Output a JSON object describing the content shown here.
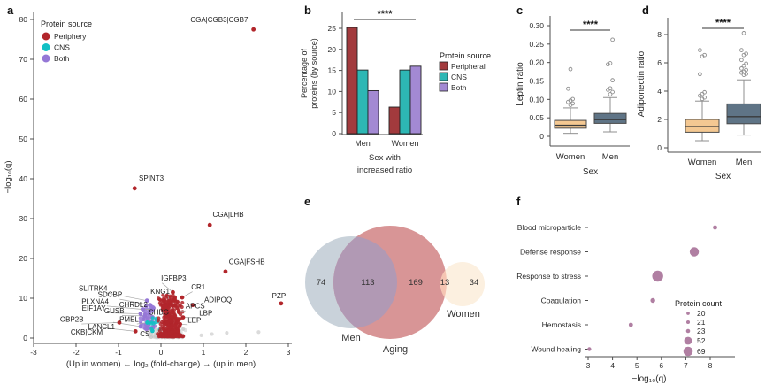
{
  "panels": {
    "a": "a",
    "b": "b",
    "c": "c",
    "d": "d",
    "e": "e",
    "f": "f"
  },
  "chart_data": [
    {
      "panel": "a",
      "type": "scatter",
      "xlabel": "(Up in women) ← log₂ (fold-change) → (up in men)",
      "ylabel": "−log₁₀(q)",
      "xlim": [
        -3,
        3
      ],
      "ylim": [
        0,
        82
      ],
      "xticks": [
        -3,
        -2,
        -1,
        0,
        1,
        2,
        3
      ],
      "yticks": [
        0,
        10,
        20,
        30,
        40,
        50,
        60,
        70,
        80
      ],
      "legend": {
        "title": "Protein source",
        "items": [
          {
            "label": "Periphery",
            "key": "periphery"
          },
          {
            "label": "CNS",
            "key": "cns"
          },
          {
            "label": "Both",
            "key": "both"
          }
        ]
      },
      "point_colors": {
        "periphery": "#b2262b",
        "cns": "#12c0c4",
        "both": "#9577d6",
        "ns": "#c3c3c3"
      },
      "labeled_points": [
        {
          "name": "CGA|CGB3|CGB7",
          "x": 2.18,
          "y": 77.5,
          "c": "periphery",
          "lx": 2.05,
          "ly": 79.3,
          "a": "end",
          "leader": false
        },
        {
          "name": "SPINT3",
          "x": -0.62,
          "y": 37.6,
          "c": "periphery",
          "lx": -0.52,
          "ly": 39.6,
          "a": "start",
          "leader": false
        },
        {
          "name": "CGA|LHB",
          "x": 1.15,
          "y": 28.4,
          "c": "periphery",
          "lx": 1.22,
          "ly": 30.4,
          "a": "start",
          "leader": false
        },
        {
          "name": "CGA|FSHB",
          "x": 1.52,
          "y": 16.7,
          "c": "periphery",
          "lx": 1.6,
          "ly": 18.6,
          "a": "start",
          "leader": false
        },
        {
          "name": "IGFBP3",
          "x": 0.28,
          "y": 11.5,
          "c": "periphery",
          "lx": 0.3,
          "ly": 14.4,
          "a": "middle",
          "leader": true
        },
        {
          "name": "CR1",
          "x": 0.5,
          "y": 10.2,
          "c": "periphery",
          "lx": 0.88,
          "ly": 12.2,
          "a": "middle",
          "leader": true
        },
        {
          "name": "KNG1",
          "x": 0.2,
          "y": 9.3,
          "c": "periphery",
          "lx": -0.02,
          "ly": 11.1,
          "a": "middle",
          "leader": true
        },
        {
          "name": "SLITRK4",
          "x": -0.33,
          "y": 9.4,
          "c": "both",
          "lx": -1.6,
          "ly": 11.9,
          "a": "middle",
          "leader": true
        },
        {
          "name": "SDCBP",
          "x": -0.25,
          "y": 8.3,
          "c": "both",
          "lx": -1.2,
          "ly": 10.3,
          "a": "middle",
          "leader": true
        },
        {
          "name": "ADIPOQ",
          "x": 0.75,
          "y": 8.3,
          "c": "periphery",
          "lx": 1.02,
          "ly": 9.0,
          "a": "start",
          "leader": false
        },
        {
          "name": "PZP",
          "x": 2.83,
          "y": 8.7,
          "c": "periphery",
          "lx": 2.78,
          "ly": 10.0,
          "a": "middle",
          "leader": false
        },
        {
          "name": "PLXNA4",
          "x": -0.42,
          "y": 7.2,
          "c": "both",
          "lx": -1.55,
          "ly": 8.6,
          "a": "middle",
          "leader": true
        },
        {
          "name": "CHRDL2",
          "x": -0.2,
          "y": 7.2,
          "c": "both",
          "lx": -0.65,
          "ly": 7.8,
          "a": "middle",
          "leader": true
        },
        {
          "name": "APCS",
          "x": 0.42,
          "y": 6.6,
          "c": "periphery",
          "lx": 0.58,
          "ly": 7.4,
          "a": "start",
          "leader": true
        },
        {
          "name": "EIF1AY",
          "x": -0.48,
          "y": 6.1,
          "c": "both",
          "lx": -1.58,
          "ly": 6.9,
          "a": "middle",
          "leader": true
        },
        {
          "name": "GUSB",
          "x": -0.38,
          "y": 5.6,
          "c": "both",
          "lx": -1.1,
          "ly": 6.2,
          "a": "middle",
          "leader": true
        },
        {
          "name": "SHBG",
          "x": 0.1,
          "y": 5.5,
          "c": "periphery",
          "lx": -0.05,
          "ly": 5.9,
          "a": "middle",
          "leader": false
        },
        {
          "name": "LBP",
          "x": 0.52,
          "y": 5.2,
          "c": "periphery",
          "lx": 0.9,
          "ly": 5.7,
          "a": "start",
          "leader": true
        },
        {
          "name": "OBP2B",
          "x": -0.98,
          "y": 3.9,
          "c": "periphery",
          "lx": -2.1,
          "ly": 4.1,
          "a": "middle",
          "leader": true
        },
        {
          "name": "PMEL",
          "x": -0.32,
          "y": 3.9,
          "c": "cns",
          "lx": -0.75,
          "ly": 4.1,
          "a": "middle",
          "leader": true
        },
        {
          "name": "LEP",
          "x": 0.45,
          "y": 3.5,
          "c": "periphery",
          "lx": 0.63,
          "ly": 3.9,
          "a": "start",
          "leader": true
        },
        {
          "name": "LANCL1",
          "x": -0.48,
          "y": 2.9,
          "c": "both",
          "lx": -1.4,
          "ly": 2.2,
          "a": "middle",
          "leader": true
        },
        {
          "name": "CKB|CKM",
          "x": -0.6,
          "y": 1.7,
          "c": "periphery",
          "lx": -1.75,
          "ly": 0.9,
          "a": "middle",
          "leader": true
        },
        {
          "name": "CS",
          "x": -0.2,
          "y": 1.8,
          "c": "cns",
          "lx": -0.38,
          "ly": 0.4,
          "a": "middle",
          "leader": true
        }
      ],
      "background_cloud": {
        "seed": 12,
        "point_radius": 2.1,
        "groups": [
          {
            "key": "ns",
            "n": 150,
            "cx": 0.15,
            "sx": 0.34,
            "ymin": 0.15,
            "ymax": 2.3,
            "ypow": 1.6
          },
          {
            "key": "both",
            "n": 60,
            "cx": -0.3,
            "sx": 0.14,
            "ymin": 2.2,
            "ymax": 8.6,
            "ypow": 1.6
          },
          {
            "key": "cns",
            "n": 10,
            "cx": -0.18,
            "sx": 0.15,
            "ymin": 2.0,
            "ymax": 6.0,
            "ypow": 1.2
          },
          {
            "key": "periphery",
            "n": 400,
            "cx": 0.22,
            "sx": 0.2,
            "ymin": 0.4,
            "ymax": 10.8,
            "ypow": 2.4
          }
        ]
      },
      "extra_ns_points": [
        {
          "x": 1.55,
          "y": 1.3
        },
        {
          "x": 2.3,
          "y": 1.5
        },
        {
          "x": 0.95,
          "y": 0.7
        },
        {
          "x": 1.2,
          "y": 1.0
        }
      ]
    },
    {
      "panel": "b",
      "type": "bar",
      "categories": [
        "Men",
        "Women"
      ],
      "series": [
        {
          "name": "Peripheral",
          "color": "#a23a3d",
          "values": [
            25.2,
            6.3
          ]
        },
        {
          "name": "CNS",
          "color": "#2db7b4",
          "values": [
            15.1,
            15.1
          ]
        },
        {
          "name": "Both",
          "color": "#a389d3",
          "values": [
            10.2,
            16.0
          ]
        }
      ],
      "ylabel_lines": [
        "Percentage of",
        "proteins (by source)"
      ],
      "xlabel_lines": [
        "Sex with",
        "increased ratio"
      ],
      "yticks": [
        0,
        5,
        10,
        15,
        20,
        25
      ],
      "ylim": [
        0,
        27
      ],
      "significance": "****",
      "legend": {
        "title": "Protein source"
      }
    },
    {
      "panel": "c",
      "type": "box",
      "ylabel": "Leptin ratio",
      "xlabel": "Sex",
      "categories": [
        "Women",
        "Men"
      ],
      "yticks": [
        0,
        0.05,
        0.1,
        0.15,
        0.2,
        0.25,
        0.3
      ],
      "ytick_labels": [
        "0",
        "0.05",
        "0.10",
        "0.15",
        "0.20",
        "0.25",
        "0.30"
      ],
      "significance": "****",
      "boxes": [
        {
          "category": "Women",
          "color": "#f4c892",
          "whisker_low": 0.008,
          "q1": 0.022,
          "median": 0.03,
          "q3": 0.043,
          "whisker_high": 0.077,
          "outliers": [
            0.085,
            0.089,
            0.093,
            0.097,
            0.101,
            0.129,
            0.182
          ]
        },
        {
          "category": "Men",
          "color": "#5f7486",
          "whisker_low": 0.012,
          "q1": 0.035,
          "median": 0.045,
          "q3": 0.062,
          "whisker_high": 0.105,
          "outliers": [
            0.114,
            0.12,
            0.126,
            0.13,
            0.152,
            0.195,
            0.198,
            0.262
          ]
        }
      ]
    },
    {
      "panel": "d",
      "type": "box",
      "ylabel": "Adiponectin ratio",
      "xlabel": "Sex",
      "categories": [
        "Women",
        "Men"
      ],
      "yticks": [
        0,
        2,
        4,
        6,
        8
      ],
      "ytick_labels": [
        "0",
        "2",
        "4",
        "6",
        "8"
      ],
      "significance": "****",
      "boxes": [
        {
          "category": "Women",
          "color": "#f4c892",
          "whisker_low": 0.5,
          "q1": 1.1,
          "median": 1.5,
          "q3": 2.0,
          "whisker_high": 3.3,
          "outliers": [
            3.45,
            3.55,
            3.68,
            3.8,
            3.92,
            5.2,
            6.45,
            6.55,
            6.9
          ]
        },
        {
          "category": "Men",
          "color": "#5f7486",
          "whisker_low": 0.9,
          "q1": 1.7,
          "median": 2.2,
          "q3": 3.1,
          "whisker_high": 4.8,
          "outliers": [
            5.15,
            5.22,
            5.3,
            5.38,
            5.5,
            5.6,
            5.8,
            5.95,
            6.2,
            6.55,
            6.65,
            6.9,
            8.1
          ]
        }
      ]
    },
    {
      "panel": "e",
      "type": "venn",
      "sets": [
        "Men",
        "Aging",
        "Women"
      ],
      "regions": [
        {
          "label": "Men only",
          "value": 74
        },
        {
          "label": "Men ∩ Aging",
          "value": 113
        },
        {
          "label": "Aging only",
          "value": 169
        },
        {
          "label": "Aging ∩ Women",
          "value": 13
        },
        {
          "label": "Women only",
          "value": 34
        }
      ],
      "colors": {
        "men": "#c9d2da",
        "aging": "#d89596",
        "men_aging": "#b199b4",
        "women": "#fcf0e0",
        "aging_women": "#f5c5b2"
      }
    },
    {
      "panel": "f",
      "type": "dot",
      "xlabel": "−log₁₀(q)",
      "xticks": [
        3,
        4,
        5,
        6,
        7,
        8
      ],
      "color": "#b07fa2",
      "points": [
        {
          "label": "Blood microparticle",
          "x": 8.2,
          "count": 21
        },
        {
          "label": "Defense response",
          "x": 7.35,
          "count": 52
        },
        {
          "label": "Response to stress",
          "x": 5.85,
          "count": 69
        },
        {
          "label": "Coagulation",
          "x": 5.65,
          "count": 23
        },
        {
          "label": "Hemostasis",
          "x": 4.75,
          "count": 21
        },
        {
          "label": "Wound healing",
          "x": 3.05,
          "count": 20
        }
      ],
      "legend": {
        "title": "Protein count",
        "sizes": [
          20,
          21,
          23,
          52,
          69
        ]
      }
    }
  ]
}
